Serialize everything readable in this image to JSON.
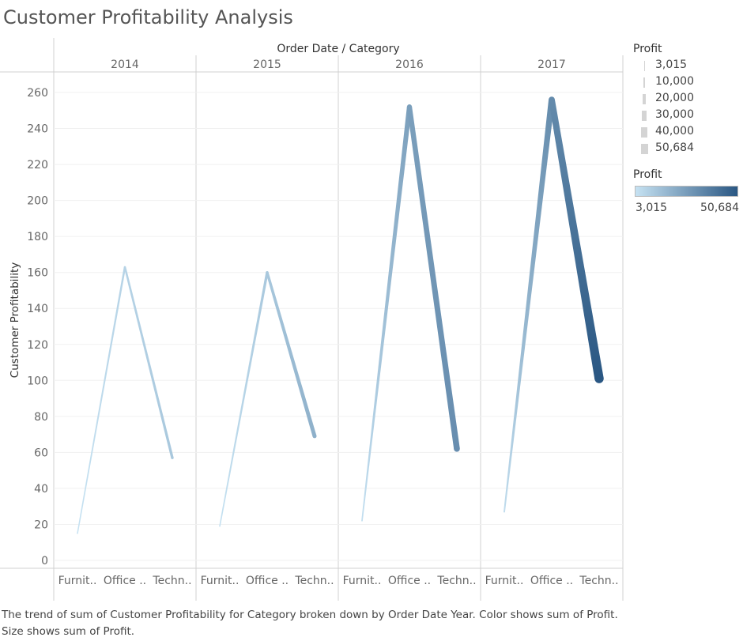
{
  "page": {
    "title": "Customer Profitability Analysis",
    "caption": "The trend of sum of Customer Profitability for Category broken down by Order Date Year.  Color shows sum of Profit.  Size shows sum of Profit."
  },
  "legend_size": {
    "title": "Profit",
    "items": [
      {
        "label": "3,015",
        "value": 3015
      },
      {
        "label": "10,000",
        "value": 10000
      },
      {
        "label": "20,000",
        "value": 20000
      },
      {
        "label": "30,000",
        "value": 30000
      },
      {
        "label": "40,000",
        "value": 40000
      },
      {
        "label": "50,684",
        "value": 50684
      }
    ]
  },
  "legend_color": {
    "title": "Profit",
    "min_label": "3,015",
    "max_label": "50,684",
    "min_color": "#c6e2f2",
    "max_color": "#2a5783"
  },
  "chart_data": {
    "type": "line",
    "header": "Order Date / Category",
    "ylabel": "Customer Profitability",
    "ylim": [
      0,
      260
    ],
    "yticks": [
      0,
      20,
      40,
      60,
      80,
      100,
      120,
      140,
      160,
      180,
      200,
      220,
      240,
      260
    ],
    "category_labels": [
      "Furnit..",
      "Office ..",
      "Techn.."
    ],
    "panels": [
      {
        "year": "2014",
        "values": [
          15,
          163,
          57
        ],
        "profit": [
          3015,
          8000,
          12000
        ]
      },
      {
        "year": "2015",
        "values": [
          19,
          160,
          69
        ],
        "profit": [
          3300,
          12000,
          20000
        ]
      },
      {
        "year": "2016",
        "values": [
          22,
          252,
          62
        ],
        "profit": [
          4000,
          26000,
          32000
        ]
      },
      {
        "year": "2017",
        "values": [
          27,
          256,
          101
        ],
        "profit": [
          5000,
          33000,
          50684
        ]
      }
    ]
  }
}
